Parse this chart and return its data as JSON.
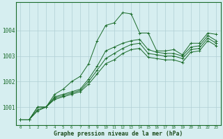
{
  "bg_color": "#d6eef0",
  "grid_color": "#b0cfd4",
  "line_color": "#1a6b2a",
  "marker_color": "#1a6b2a",
  "xlabel": "Graphe pression niveau de la mer (hPa)",
  "xlabel_color": "#1a4a1a",
  "x_ticks": [
    0,
    1,
    2,
    3,
    4,
    5,
    6,
    7,
    8,
    9,
    10,
    11,
    12,
    13,
    14,
    15,
    16,
    17,
    18,
    19,
    20,
    21,
    22,
    23
  ],
  "ylim": [
    1000.3,
    1005.1
  ],
  "y_ticks": [
    1001,
    1002,
    1003,
    1004
  ],
  "series": [
    [
      1000.5,
      1000.5,
      1001.0,
      1001.0,
      1001.5,
      1001.7,
      1002.0,
      1002.2,
      1002.7,
      1003.6,
      1004.2,
      1004.3,
      1004.7,
      1004.65,
      1003.9,
      1003.9,
      1003.2,
      1003.2,
      1003.25,
      1003.05,
      1003.5,
      1003.5,
      1003.9,
      1003.85
    ],
    [
      1000.5,
      1000.5,
      1001.0,
      1001.0,
      1001.4,
      1001.5,
      1001.6,
      1001.7,
      1002.1,
      1002.6,
      1003.2,
      1003.35,
      1003.5,
      1003.6,
      1003.65,
      1003.25,
      1003.15,
      1003.1,
      1003.1,
      1003.0,
      1003.35,
      1003.4,
      1003.8,
      1003.6
    ],
    [
      1000.5,
      1000.5,
      1000.9,
      1001.0,
      1001.35,
      1001.45,
      1001.55,
      1001.65,
      1002.0,
      1002.45,
      1002.9,
      1003.1,
      1003.3,
      1003.45,
      1003.5,
      1003.1,
      1003.05,
      1003.0,
      1003.0,
      1002.9,
      1003.25,
      1003.3,
      1003.7,
      1003.5
    ],
    [
      1000.5,
      1000.5,
      1000.85,
      1001.0,
      1001.3,
      1001.4,
      1001.5,
      1001.6,
      1001.9,
      1002.3,
      1002.7,
      1002.85,
      1003.1,
      1003.25,
      1003.3,
      1002.95,
      1002.9,
      1002.85,
      1002.85,
      1002.75,
      1003.15,
      1003.2,
      1003.6,
      1003.4
    ]
  ]
}
